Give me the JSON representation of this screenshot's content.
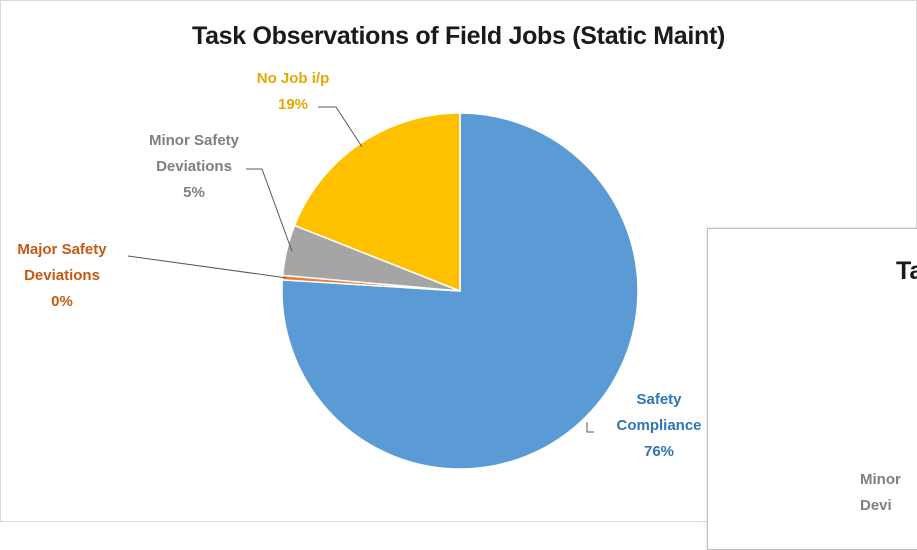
{
  "chart_data": {
    "type": "pie",
    "title": "Task Observations of Field Jobs (Static Maint)",
    "slices": [
      {
        "name": "Safety Compliance",
        "label_lines": [
          "Safety",
          "Compliance"
        ],
        "value": 76,
        "pct_label": "76%",
        "color": "#5b9bd5"
      },
      {
        "name": "Major Safety Deviations",
        "label_lines": [
          "Major Safety",
          "Deviations"
        ],
        "value": 0.4,
        "pct_label": "0%",
        "color": "#ed7d31"
      },
      {
        "name": "Minor Safety Deviations",
        "label_lines": [
          "Minor Safety",
          "Deviations"
        ],
        "value": 4.6,
        "pct_label": "5%",
        "color": "#a5a5a5"
      },
      {
        "name": "No Job i/p",
        "label_lines": [
          "No Job i/p"
        ],
        "value": 19,
        "pct_label": "19%",
        "color": "#ffc000"
      }
    ],
    "label_colors": {
      "Safety Compliance": "#2e75b6",
      "Major Safety Deviations": "#c55a11",
      "Minor Safety Deviations": "#7f7f7f",
      "No Job i/p": "#e7a700"
    }
  },
  "second_chart": {
    "title_fragment": "Ta",
    "label_line1": "Minor",
    "label_line2": "Devi"
  }
}
